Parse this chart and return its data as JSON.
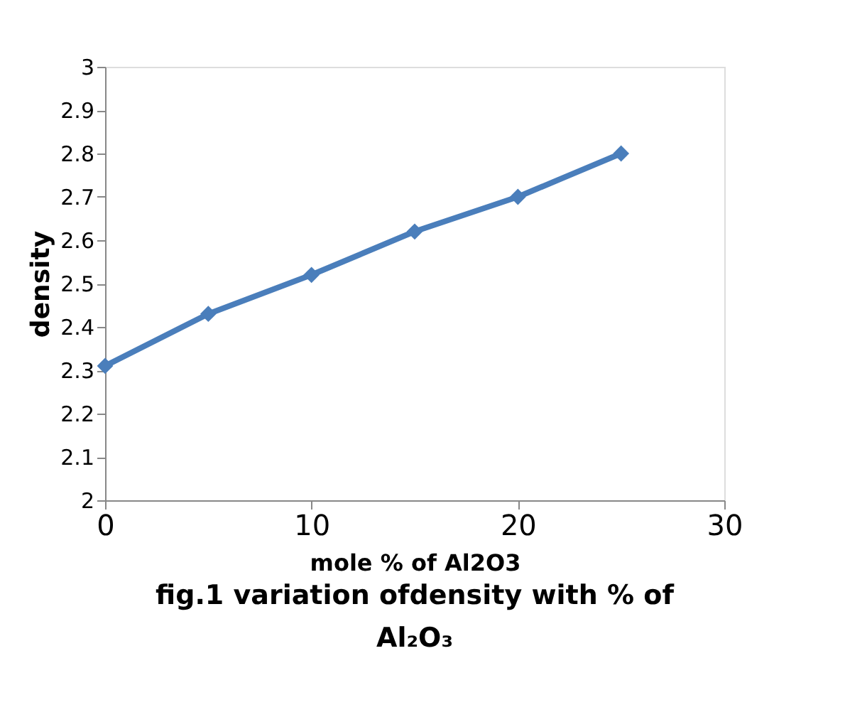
{
  "chart_data": {
    "type": "line",
    "xlabel": "mole % of Al2O3",
    "ylabel": "density",
    "annotations": [
      "fig.1 variation ofdensity with % of Al₂O₃"
    ],
    "x": [
      0,
      5,
      10,
      15,
      20,
      25
    ],
    "series": [
      {
        "color": "#4a7ebb",
        "values": [
          2.31,
          2.43,
          2.52,
          2.62,
          2.7,
          2.8
        ]
      }
    ],
    "xlim": [
      0,
      30
    ],
    "xticks": [
      0,
      10,
      20,
      30
    ],
    "ylim": [
      2,
      3
    ],
    "yticks": [
      2,
      2.1,
      2.2,
      2.3,
      2.4,
      2.5,
      2.6,
      2.7,
      2.8,
      2.9,
      3
    ],
    "grid": false,
    "legend": false,
    "marker": "diamond",
    "line_style": "solid"
  }
}
